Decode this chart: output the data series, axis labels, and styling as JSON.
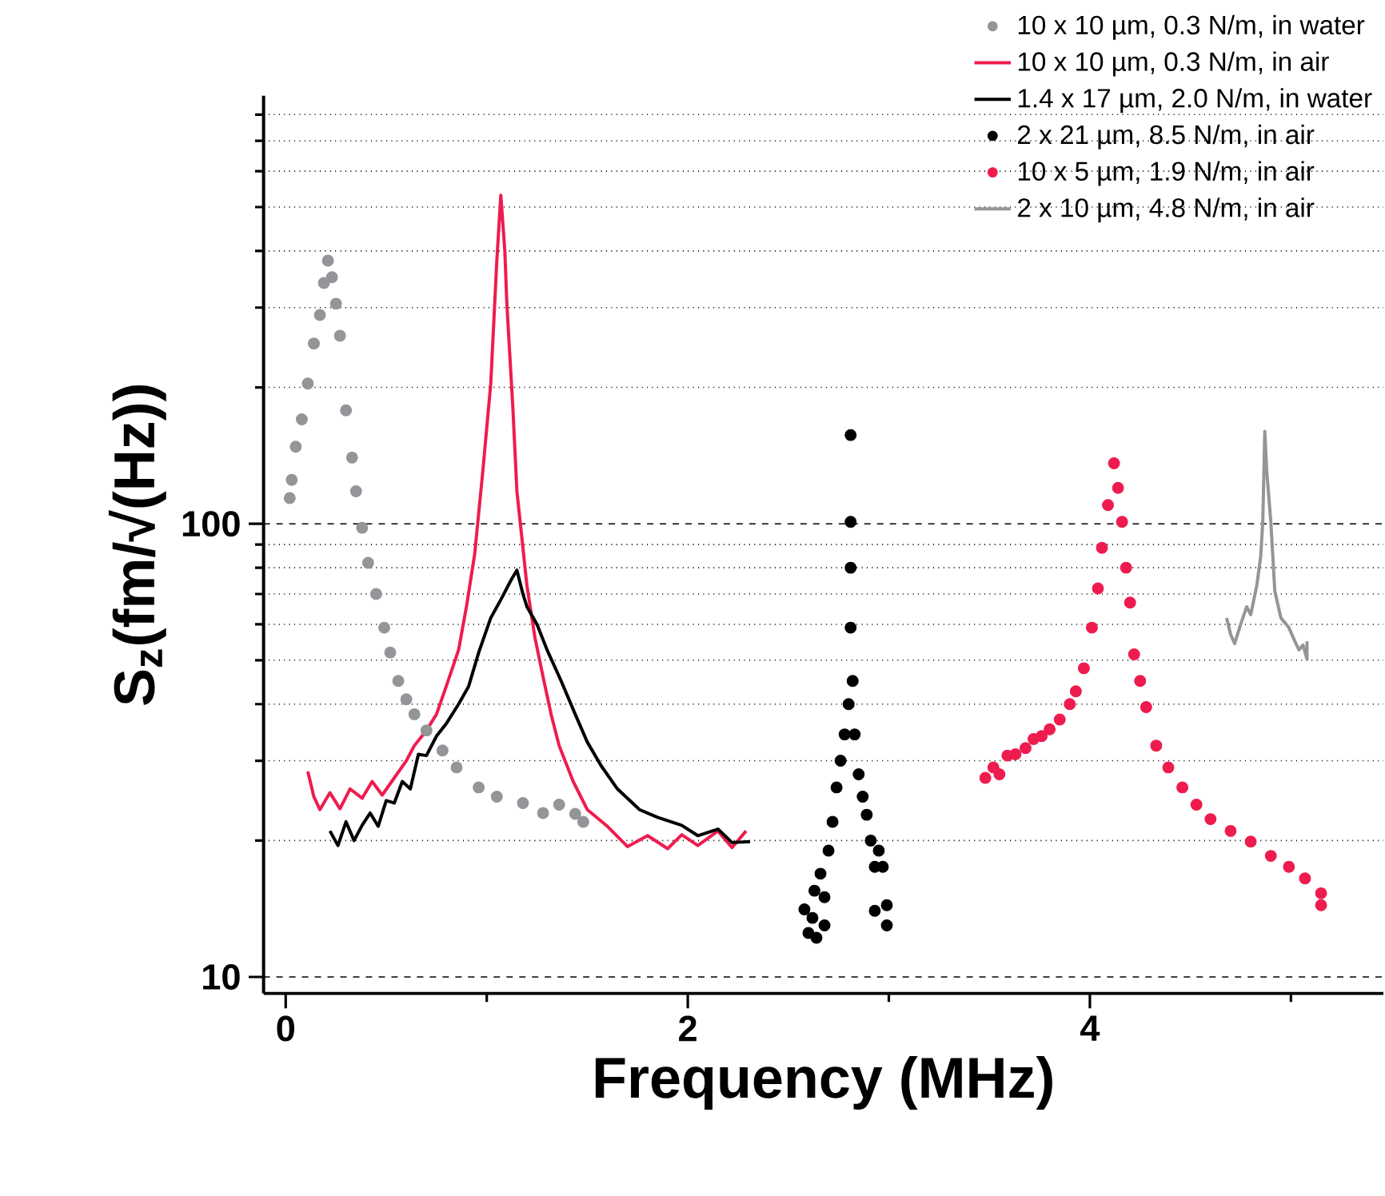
{
  "chart_data": {
    "type": "scatter",
    "xlabel": "Frequency (MHz)",
    "ylabel": "S$_{z}$(fm/√(Hz))",
    "xlim": [
      -0.11,
      5.46
    ],
    "ylim": [
      9.2,
      880
    ],
    "log": "y",
    "grid": "y",
    "legend": "top right",
    "xticks": [
      0,
      {
        "value": 1,
        "label": null
      },
      2,
      {
        "value": 3,
        "label": null
      },
      4,
      {
        "value": 5,
        "label": null
      }
    ],
    "yticks": [
      10,
      {
        "value": 20,
        "label": null
      },
      {
        "value": 30,
        "label": null
      },
      {
        "value": 40,
        "label": null
      },
      {
        "value": 50,
        "label": null
      },
      {
        "value": 60,
        "label": null
      },
      {
        "value": 70,
        "label": null
      },
      {
        "value": 80,
        "label": null
      },
      {
        "value": 90,
        "label": null
      },
      100,
      {
        "value": 200,
        "label": null
      },
      {
        "value": 300,
        "label": null
      },
      {
        "value": 400,
        "label": null
      },
      {
        "value": 500,
        "label": null
      },
      {
        "value": 600,
        "label": null
      },
      {
        "value": 700,
        "label": null
      },
      {
        "value": 800,
        "label": null
      }
    ],
    "series": [
      {
        "name": "10    x 10 µm, 0.3 N/m, in water",
        "type": "scatter",
        "marker": "circle",
        "color": "#939598",
        "x": [
          0.02,
          0.03,
          0.05,
          0.08,
          0.11,
          0.14,
          0.17,
          0.19,
          0.21,
          0.23,
          0.25,
          0.27,
          0.3,
          0.33,
          0.35,
          0.38,
          0.41,
          0.45,
          0.49,
          0.52,
          0.56,
          0.6,
          0.64,
          0.7,
          0.78,
          0.85,
          0.96,
          1.05,
          1.18,
          1.28,
          1.36,
          1.44,
          1.48
        ],
        "values": [
          114,
          125,
          148,
          170,
          204,
          250,
          289,
          340,
          381,
          350,
          306,
          260,
          178,
          140,
          118,
          98,
          82,
          70,
          59,
          52,
          45,
          41,
          38,
          35,
          31.6,
          29,
          26.2,
          25,
          24.2,
          23,
          24,
          22.9,
          22
        ]
      },
      {
        "name": "10    x 10 µm, 0.3 N/m, in air",
        "type": "line",
        "color": "#ee1c4e",
        "x": [
          0.11,
          0.14,
          0.17,
          0.22,
          0.27,
          0.32,
          0.38,
          0.43,
          0.48,
          0.54,
          0.6,
          0.64,
          0.7,
          0.75,
          0.8,
          0.86,
          0.9,
          0.94,
          0.98,
          1.02,
          1.05,
          1.07,
          1.09,
          1.1,
          1.13,
          1.15,
          1.2,
          1.24,
          1.28,
          1.32,
          1.36,
          1.43,
          1.5,
          1.6,
          1.7,
          1.8,
          1.9,
          1.97,
          2.05,
          2.15,
          2.22,
          2.29
        ],
        "values": [
          28.4,
          25,
          23.4,
          25.5,
          23.5,
          26,
          24.8,
          27,
          25.2,
          27.5,
          30,
          32.4,
          35,
          38,
          44,
          52.7,
          66,
          85.7,
          130,
          204,
          380,
          531,
          400,
          306,
          180,
          118,
          73,
          56,
          46,
          38,
          32.4,
          27,
          23.4,
          21.5,
          19.4,
          20.5,
          19.2,
          20.6,
          19.5,
          21,
          19.3,
          21
        ]
      },
      {
        "name": "1.4 x 17 µm, 2.0 N/m, in water",
        "type": "line",
        "color": "#000000",
        "x": [
          0.22,
          0.26,
          0.3,
          0.34,
          0.38,
          0.42,
          0.46,
          0.5,
          0.54,
          0.58,
          0.62,
          0.66,
          0.7,
          0.75,
          0.8,
          0.86,
          0.91,
          0.96,
          1.02,
          1.07,
          1.12,
          1.15,
          1.18,
          1.2,
          1.25,
          1.3,
          1.37,
          1.44,
          1.5,
          1.57,
          1.65,
          1.76,
          1.85,
          1.97,
          2.05,
          2.15,
          2.22,
          2.31
        ],
        "values": [
          21,
          19.5,
          22,
          20,
          21.6,
          23,
          21.5,
          24.5,
          24.2,
          27,
          26,
          31,
          30.8,
          34,
          36.3,
          40,
          43.8,
          52,
          62,
          68,
          75,
          79,
          70,
          65.6,
          60,
          52.7,
          45,
          38,
          33,
          29.2,
          26,
          23.4,
          22.5,
          21.6,
          20.5,
          21.2,
          19.8,
          19.9
        ]
      },
      {
        "name": "2    x 21 µm, 8.5 N/m, in air",
        "type": "scatter",
        "marker": "circle",
        "color": "#000000",
        "x": [
          2.58,
          2.6,
          2.62,
          2.64,
          2.66,
          2.68,
          2.7,
          2.72,
          2.74,
          2.76,
          2.78,
          2.8,
          2.81,
          2.81,
          2.81,
          2.81,
          2.82,
          2.83,
          2.85,
          2.87,
          2.89,
          2.91,
          2.93,
          2.95,
          2.97,
          2.99,
          2.99,
          2.63,
          2.68,
          2.93
        ],
        "values": [
          14.1,
          12.5,
          13.5,
          12.2,
          16.9,
          15,
          19,
          22,
          26.2,
          30,
          34.3,
          40,
          59,
          80,
          101,
          157,
          45,
          34.3,
          28,
          25,
          22.8,
          20,
          17.5,
          19,
          17.5,
          14.4,
          13,
          15.5,
          13,
          14
        ]
      },
      {
        "name": "10    x   5 µm, 1.9 N/m, in air",
        "type": "scatter",
        "marker": "circle",
        "color": "#ee1c4e",
        "x": [
          3.48,
          3.52,
          3.55,
          3.59,
          3.63,
          3.68,
          3.72,
          3.76,
          3.8,
          3.85,
          3.9,
          3.93,
          3.97,
          4.01,
          4.04,
          4.06,
          4.09,
          4.12,
          4.14,
          4.16,
          4.18,
          4.2,
          4.22,
          4.25,
          4.28,
          4.33,
          4.39,
          4.46,
          4.53,
          4.6,
          4.7,
          4.8,
          4.9,
          4.99,
          5.07,
          5.15,
          5.15
        ],
        "values": [
          27.5,
          29,
          28,
          30.8,
          31,
          32,
          33.5,
          34,
          35.2,
          37,
          40,
          42.7,
          48,
          59,
          72,
          88.5,
          110,
          136,
          120,
          101,
          80,
          67,
          51.5,
          45,
          39.4,
          32.4,
          29,
          26.2,
          24,
          22.3,
          21,
          19.9,
          18.5,
          17.5,
          16.5,
          15.3,
          14.4
        ]
      },
      {
        "name": "2    x 10 µm, 4.8 N/m, in air",
        "type": "line",
        "color": "#939598",
        "x": [
          4.68,
          4.7,
          4.72,
          4.75,
          4.78,
          4.8,
          4.83,
          4.85,
          4.86,
          4.87,
          4.88,
          4.9,
          4.92,
          4.95,
          4.99,
          5.02,
          5.04,
          5.06,
          5.08,
          5.08
        ],
        "values": [
          62,
          57,
          54.4,
          60,
          65.6,
          63,
          73,
          85,
          101,
          160,
          130,
          101,
          71,
          62,
          59,
          55,
          52.7,
          54,
          50.2,
          55
        ]
      }
    ]
  }
}
